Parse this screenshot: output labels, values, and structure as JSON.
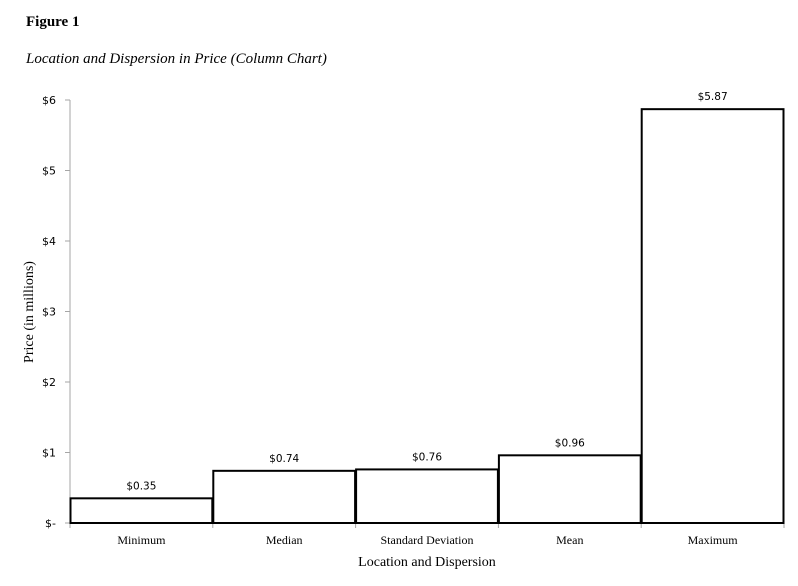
{
  "figure_label": "Figure 1",
  "figure_title": "Location and Dispersion in Price (Column Chart)",
  "chart_data": {
    "type": "bar",
    "categories": [
      "Minimum",
      "Median",
      "Standard Deviation",
      "Mean",
      "Maximum"
    ],
    "values": [
      0.35,
      0.74,
      0.76,
      0.96,
      5.87
    ],
    "data_labels": [
      "$0.35",
      "$0.74",
      "$0.76",
      "$0.96",
      "$5.87"
    ],
    "xlabel": "Location and Dispersion",
    "ylabel": "Price (in millions)",
    "ylim": [
      0,
      6
    ],
    "y_ticks": [
      0,
      1,
      2,
      3,
      4,
      5,
      6
    ],
    "y_tick_labels": [
      "$-",
      "$1",
      "$2",
      "$3",
      "$4",
      "$5",
      "$6"
    ],
    "grid": false,
    "legend": "none",
    "bar_fill": "#ffffff",
    "bar_stroke": "#000000",
    "axis_color": "#a6a6a6"
  }
}
